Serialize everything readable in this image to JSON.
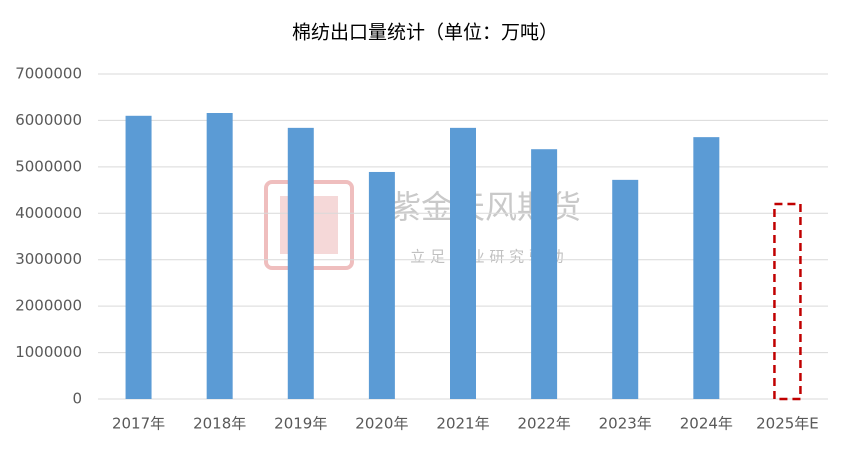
{
  "chart_data": {
    "type": "bar",
    "title": "棉纺出口量统计（单位：万吨）",
    "categories": [
      "2017年",
      "2018年",
      "2019年",
      "2020年",
      "2021年",
      "2022年",
      "2023年",
      "2024年",
      "2025年E"
    ],
    "values": [
      6100000,
      6160000,
      5840000,
      4890000,
      5840000,
      5380000,
      4720000,
      5640000,
      null
    ],
    "color": "#5b9bd5",
    "estimate": {
      "category": "2025年E",
      "value": 4200000,
      "color": "#c00000"
    },
    "ylim": [
      0,
      7000000
    ],
    "yticks": [
      0,
      1000000,
      2000000,
      3000000,
      4000000,
      5000000,
      6000000,
      7000000
    ],
    "grid": true,
    "watermark": {
      "name": "紫金天风期货",
      "slogan": "立 足 产 业   研 究 驱 动"
    }
  }
}
